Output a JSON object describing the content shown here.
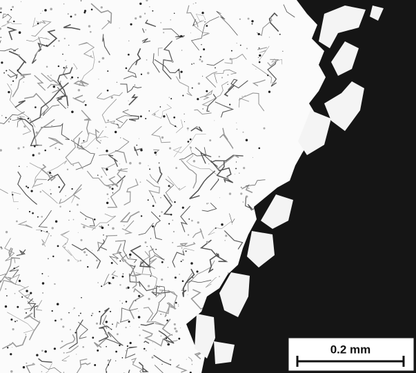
{
  "scale_bar": {
    "label": "0.2 mm"
  }
}
